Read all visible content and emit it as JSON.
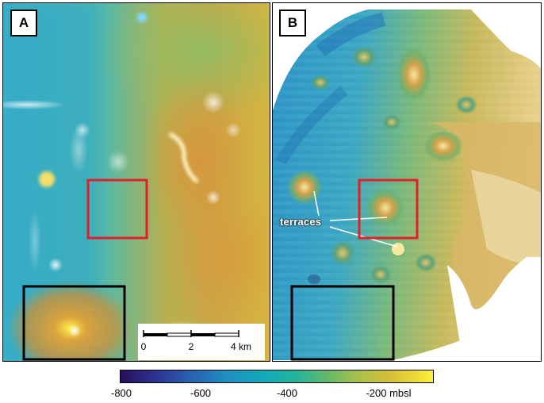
{
  "panels": {
    "a": {
      "label": "A"
    },
    "b": {
      "label": "B",
      "annotation": "terraces"
    }
  },
  "scale_bar": {
    "ticks": [
      "0",
      "2",
      "4 km"
    ]
  },
  "colorbar": {
    "ticks": [
      "-800",
      "-600",
      "-400",
      "-200 mbsl"
    ],
    "colormap": [
      "#2a0f5a",
      "#2a5fb0",
      "#13aab8",
      "#62b96a",
      "#d5bf3a",
      "#fbf23a"
    ]
  },
  "colors": {
    "highlight_box": "#e0202a",
    "reference_box": "#000000"
  }
}
